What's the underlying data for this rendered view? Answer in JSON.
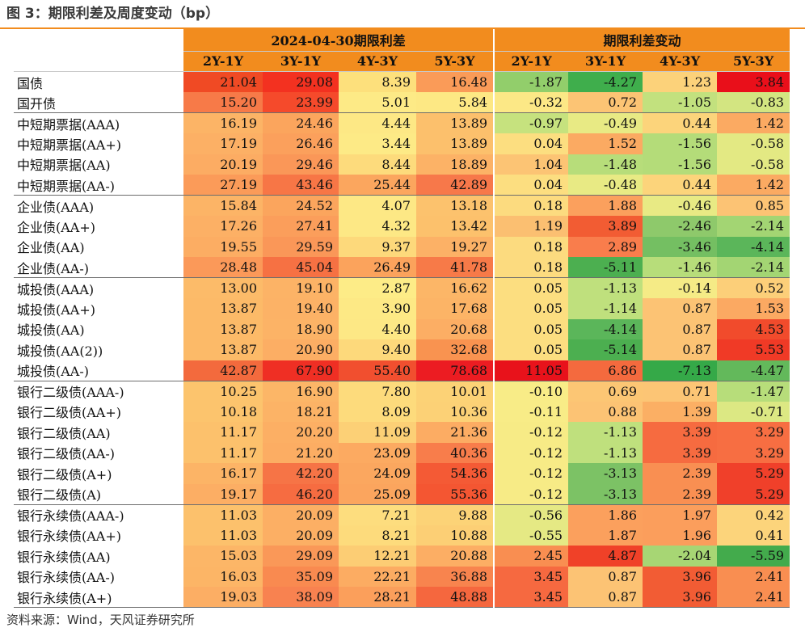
{
  "title": "图 3：期限利差及周度变动（bp）",
  "source": "资料来源：Wind，天风证券研究所",
  "header": {
    "group_spread": "2024-04-30期限利差",
    "group_change": "期限利差变动",
    "cols": [
      "2Y-1Y",
      "3Y-1Y",
      "4Y-3Y",
      "5Y-3Y"
    ]
  },
  "rows": [
    {
      "label": "国债",
      "spread": [
        "21.04",
        "29.08",
        "8.39",
        "16.48"
      ],
      "change": [
        "-1.87",
        "-4.27",
        "1.23",
        "3.84"
      ],
      "sc": [
        "#f04a24",
        "#f33120",
        "#fde07c",
        "#fa9b58"
      ],
      "cc": [
        "#92ce6b",
        "#3fae4c",
        "#fcd27a",
        "#e90f1a"
      ],
      "group_start": true
    },
    {
      "label": "国开债",
      "spread": [
        "15.20",
        "23.99",
        "5.01",
        "5.84"
      ],
      "change": [
        "-0.32",
        "0.72",
        "-1.05",
        "-0.83"
      ],
      "sc": [
        "#f77a48",
        "#f54a2b",
        "#fdea86",
        "#fde884"
      ],
      "cc": [
        "#fce886",
        "#fcc474",
        "#c2e17e",
        "#d3e581"
      ],
      "group_start": false
    },
    {
      "label": "中短期票据(AAA)",
      "spread": [
        "16.19",
        "24.46",
        "4.44",
        "13.89"
      ],
      "change": [
        "-0.97",
        "-0.49",
        "0.44",
        "1.42"
      ],
      "sc": [
        "#fcb466",
        "#fba55d",
        "#fde885",
        "#fcc06c"
      ],
      "cc": [
        "#c6e27e",
        "#e8ea84",
        "#fcd47b",
        "#fbaa62"
      ],
      "group_start": true
    },
    {
      "label": "中短期票据(AA+)",
      "spread": [
        "17.19",
        "26.46",
        "3.44",
        "13.89"
      ],
      "change": [
        "0.04",
        "1.52",
        "-1.56",
        "-0.58"
      ],
      "sc": [
        "#fcb065",
        "#fba05c",
        "#fdea86",
        "#fcc06c"
      ],
      "cc": [
        "#fcde80",
        "#fbaa62",
        "#b4dc79",
        "#e3e983"
      ],
      "group_start": false
    },
    {
      "label": "中短期票据(AA)",
      "spread": [
        "20.19",
        "29.46",
        "8.44",
        "18.89"
      ],
      "change": [
        "1.04",
        "-1.48",
        "-1.56",
        "-0.58"
      ],
      "sc": [
        "#fcac63",
        "#fa9758",
        "#fddb7c",
        "#fcb266"
      ],
      "cc": [
        "#fcc474",
        "#b7dd7a",
        "#b4dc79",
        "#e3e983"
      ],
      "group_start": false
    },
    {
      "label": "中短期票据(AA-)",
      "spread": [
        "27.19",
        "43.46",
        "25.44",
        "42.89"
      ],
      "change": [
        "0.04",
        "-0.48",
        "0.44",
        "1.42"
      ],
      "sc": [
        "#fb9b59",
        "#f77646",
        "#fba65e",
        "#f7784a"
      ],
      "cc": [
        "#fcde80",
        "#e8ea84",
        "#fcd47b",
        "#fbaa62"
      ],
      "group_start": false
    },
    {
      "label": "企业债(AAA)",
      "spread": [
        "15.84",
        "24.52",
        "4.07",
        "13.18"
      ],
      "change": [
        "0.18",
        "1.88",
        "-0.46",
        "0.85"
      ],
      "sc": [
        "#fcb466",
        "#fba55d",
        "#fde885",
        "#fcc26d"
      ],
      "cc": [
        "#fcdb7f",
        "#fba05d",
        "#e8ea84",
        "#fcc374"
      ],
      "group_start": true
    },
    {
      "label": "企业债(AA+)",
      "spread": [
        "17.26",
        "27.41",
        "4.32",
        "13.42"
      ],
      "change": [
        "1.19",
        "3.89",
        "-2.46",
        "-2.14"
      ],
      "sc": [
        "#fcb065",
        "#fb9e5b",
        "#fde885",
        "#fcc16c"
      ],
      "cc": [
        "#fbbf71",
        "#f25c33",
        "#8ec96b",
        "#a3d573"
      ],
      "group_start": false
    },
    {
      "label": "企业债(AA)",
      "spread": [
        "19.55",
        "29.59",
        "9.37",
        "19.27"
      ],
      "change": [
        "0.18",
        "2.89",
        "-3.46",
        "-4.14"
      ],
      "sc": [
        "#fcad63",
        "#fa9758",
        "#fdd97b",
        "#fcb166"
      ],
      "cc": [
        "#fcdb7f",
        "#f97d4c",
        "#74bf62",
        "#5bb65a"
      ],
      "group_start": false
    },
    {
      "label": "企业债(AA-)",
      "spread": [
        "28.48",
        "45.04",
        "26.49",
        "41.78"
      ],
      "change": [
        "0.18",
        "-5.11",
        "-1.46",
        "-2.14"
      ],
      "sc": [
        "#fb9959",
        "#f67143",
        "#fba35c",
        "#f77a48"
      ],
      "cc": [
        "#fcdb7f",
        "#4caf50",
        "#b7dd7a",
        "#a3d573"
      ],
      "group_start": false
    },
    {
      "label": "城投债(AAA)",
      "spread": [
        "13.00",
        "19.10",
        "2.87",
        "16.62"
      ],
      "change": [
        "0.05",
        "-1.13",
        "-0.14",
        "0.52"
      ],
      "sc": [
        "#fcbb69",
        "#fcb366",
        "#fdec87",
        "#fcb667"
      ],
      "cc": [
        "#fcde80",
        "#bfe07d",
        "#f5eb86",
        "#fccf79"
      ],
      "group_start": true
    },
    {
      "label": "城投债(AA+)",
      "spread": [
        "13.87",
        "19.40",
        "3.90",
        "17.68"
      ],
      "change": [
        "0.05",
        "-1.14",
        "0.87",
        "1.53"
      ],
      "sc": [
        "#fcba68",
        "#fcb266",
        "#fde985",
        "#fcb466"
      ],
      "cc": [
        "#fcde80",
        "#bfe07d",
        "#fcc374",
        "#fba962"
      ],
      "group_start": false
    },
    {
      "label": "城投债(AA)",
      "spread": [
        "13.87",
        "18.90",
        "4.40",
        "20.68"
      ],
      "change": [
        "0.05",
        "-4.14",
        "0.87",
        "4.53"
      ],
      "sc": [
        "#fcba68",
        "#fcb366",
        "#fde885",
        "#fcae64"
      ],
      "cc": [
        "#fcde80",
        "#5bb65a",
        "#fcc374",
        "#f14b2c"
      ],
      "group_start": false
    },
    {
      "label": "城投债(AA(2))",
      "spread": [
        "13.87",
        "20.90",
        "9.40",
        "32.68"
      ],
      "change": [
        "0.05",
        "-5.14",
        "0.87",
        "5.53"
      ],
      "sc": [
        "#fcba68",
        "#fcae64",
        "#fdd97b",
        "#f99350"
      ],
      "cc": [
        "#fcde80",
        "#4caf50",
        "#fcc374",
        "#f03a26"
      ],
      "group_start": false
    },
    {
      "label": "城投债(AA-)",
      "spread": [
        "42.87",
        "67.90",
        "55.40",
        "78.68"
      ],
      "change": [
        "11.05",
        "6.86",
        "-7.13",
        "-4.47"
      ],
      "sc": [
        "#f36a3d",
        "#ef2f24",
        "#f14f2f",
        "#ec1c22"
      ],
      "cc": [
        "#e8121b",
        "#f46a3e",
        "#35a948",
        "#63b95b"
      ],
      "group_start": false
    },
    {
      "label": "银行二级债(AAA-)",
      "spread": [
        "10.25",
        "16.90",
        "7.80",
        "10.01"
      ],
      "change": [
        "-0.10",
        "0.69",
        "0.71",
        "-1.47"
      ],
      "sc": [
        "#fcc46d",
        "#fcb667",
        "#fddb7c",
        "#fcd276"
      ],
      "cc": [
        "#f8ec87",
        "#fcc674",
        "#fcc575",
        "#b7dd7a"
      ],
      "group_start": true
    },
    {
      "label": "银行二级债(AA+)",
      "spread": [
        "10.18",
        "18.21",
        "8.09",
        "10.36"
      ],
      "change": [
        "-0.11",
        "0.88",
        "1.39",
        "-0.71"
      ],
      "sc": [
        "#fcc46d",
        "#fcb366",
        "#fddb7c",
        "#fcd176"
      ],
      "cc": [
        "#f8ec87",
        "#fcc374",
        "#fbaf64",
        "#dce883"
      ],
      "group_start": false
    },
    {
      "label": "银行二级债(AA)",
      "spread": [
        "11.17",
        "20.20",
        "11.09",
        "21.36"
      ],
      "change": [
        "-0.12",
        "-1.13",
        "3.39",
        "3.29"
      ],
      "sc": [
        "#fcc16c",
        "#fcaf64",
        "#fcd076",
        "#fcac63"
      ],
      "cc": [
        "#f7eb86",
        "#bfe07d",
        "#f66b40",
        "#f76e42"
      ],
      "group_start": false
    },
    {
      "label": "银行二级债(AA-)",
      "spread": [
        "11.17",
        "21.20",
        "23.09",
        "40.36"
      ],
      "change": [
        "-0.12",
        "-1.13",
        "3.39",
        "3.29"
      ],
      "sc": [
        "#fcc16c",
        "#fcad63",
        "#fcaa61",
        "#f87d4b"
      ],
      "cc": [
        "#f7eb86",
        "#bfe07d",
        "#f66b40",
        "#f76e42"
      ],
      "group_start": false
    },
    {
      "label": "银行二级债(A+)",
      "spread": [
        "16.17",
        "42.20",
        "24.09",
        "54.36"
      ],
      "change": [
        "-0.12",
        "-3.13",
        "2.39",
        "5.29"
      ],
      "sc": [
        "#fcb466",
        "#f67446",
        "#fba75f",
        "#f45a35"
      ],
      "cc": [
        "#f7eb86",
        "#7cc265",
        "#f98f52",
        "#f0402a"
      ],
      "group_start": false
    },
    {
      "label": "银行二级债(A)",
      "spread": [
        "19.17",
        "46.20",
        "25.09",
        "55.36"
      ],
      "change": [
        "-0.12",
        "-3.13",
        "2.39",
        "5.29"
      ],
      "sc": [
        "#fcae64",
        "#f66c41",
        "#fba55e",
        "#f45632"
      ],
      "cc": [
        "#f7eb86",
        "#7cc265",
        "#f98f52",
        "#f0402a"
      ],
      "group_start": false
    },
    {
      "label": "银行永续债(AAA-)",
      "spread": [
        "11.03",
        "20.09",
        "7.21",
        "9.88"
      ],
      "change": [
        "-0.56",
        "1.86",
        "1.97",
        "0.42"
      ],
      "sc": [
        "#fcc16c",
        "#fcaf64",
        "#fddd7e",
        "#fcd377"
      ],
      "cc": [
        "#e5e984",
        "#fba05d",
        "#fb9e5c",
        "#fcd47b"
      ],
      "group_start": true
    },
    {
      "label": "银行永续债(AA+)",
      "spread": [
        "11.03",
        "20.09",
        "8.21",
        "10.88"
      ],
      "change": [
        "-0.55",
        "1.87",
        "1.96",
        "0.41"
      ],
      "sc": [
        "#fcc16c",
        "#fcaf64",
        "#fddb7c",
        "#fccf75"
      ],
      "cc": [
        "#e5e984",
        "#fba05d",
        "#fb9e5c",
        "#fcd47b"
      ],
      "group_start": false
    },
    {
      "label": "银行永续债(AA)",
      "spread": [
        "15.03",
        "29.09",
        "12.21",
        "20.88"
      ],
      "change": [
        "2.45",
        "4.87",
        "-2.04",
        "-5.59"
      ],
      "sc": [
        "#fcb667",
        "#fa9858",
        "#fccd74",
        "#fcae64"
      ],
      "cc": [
        "#f98e51",
        "#f04128",
        "#a7d674",
        "#43ab4c"
      ],
      "group_start": false
    },
    {
      "label": "银行永续债(AA-)",
      "spread": [
        "16.03",
        "35.09",
        "22.21",
        "36.88"
      ],
      "change": [
        "3.45",
        "0.87",
        "3.96",
        "2.41"
      ],
      "sc": [
        "#fcb566",
        "#f98a50",
        "#fcac62",
        "#f8844e"
      ],
      "cc": [
        "#f66940",
        "#fcc374",
        "#f25c34",
        "#f98e51"
      ],
      "group_start": false
    },
    {
      "label": "银行永续债(A+)",
      "spread": [
        "19.03",
        "38.09",
        "28.21",
        "48.88"
      ],
      "change": [
        "3.45",
        "0.87",
        "3.96",
        "2.41"
      ],
      "sc": [
        "#fcae64",
        "#f88250",
        "#fb9f5b",
        "#f5673e"
      ],
      "cc": [
        "#f66940",
        "#fcc374",
        "#f25c34",
        "#f98e51"
      ],
      "group_start": false
    }
  ]
}
